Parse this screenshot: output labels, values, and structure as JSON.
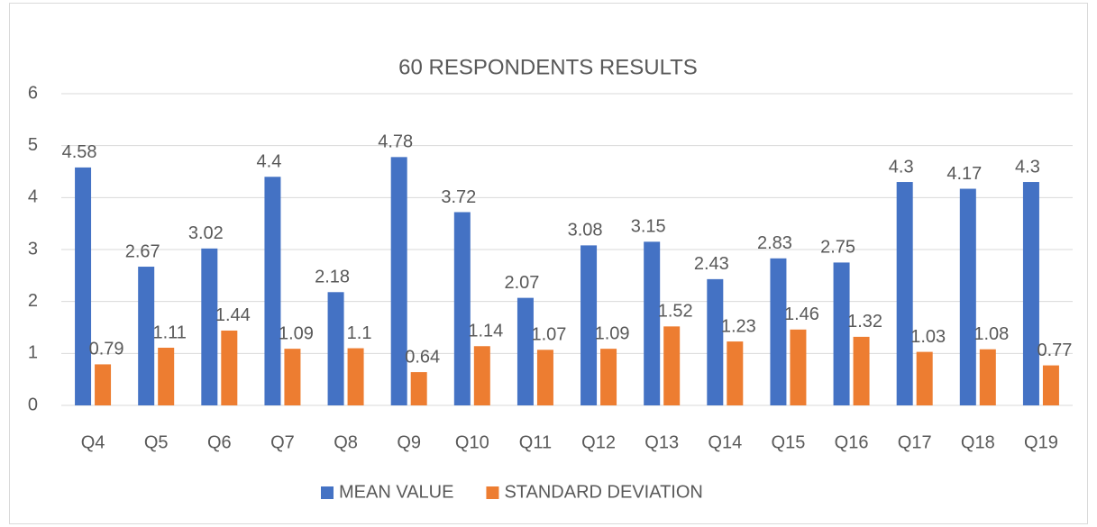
{
  "chart_data": {
    "type": "bar",
    "title": "60 RESPONDENTS RESULTS",
    "categories": [
      "Q4",
      "Q5",
      "Q6",
      "Q7",
      "Q8",
      "Q9",
      "Q10",
      "Q11",
      "Q12",
      "Q13",
      "Q14",
      "Q15",
      "Q16",
      "Q17",
      "Q18",
      "Q19"
    ],
    "series": [
      {
        "name": "MEAN VALUE",
        "color": "#4472c4",
        "values": [
          4.58,
          2.67,
          3.02,
          4.4,
          2.18,
          4.78,
          3.72,
          2.07,
          3.08,
          3.15,
          2.43,
          2.83,
          2.75,
          4.3,
          4.17,
          4.3
        ]
      },
      {
        "name": "STANDARD DEVIATION",
        "color": "#ed7d31",
        "values": [
          0.79,
          1.11,
          1.44,
          1.09,
          1.1,
          0.64,
          1.14,
          1.07,
          1.09,
          1.52,
          1.23,
          1.46,
          1.32,
          1.03,
          1.08,
          0.77
        ]
      }
    ],
    "ylim": [
      0,
      6
    ],
    "yticks": [
      0,
      1,
      2,
      3,
      4,
      5,
      6
    ],
    "grid": true,
    "legend": "bottom"
  }
}
